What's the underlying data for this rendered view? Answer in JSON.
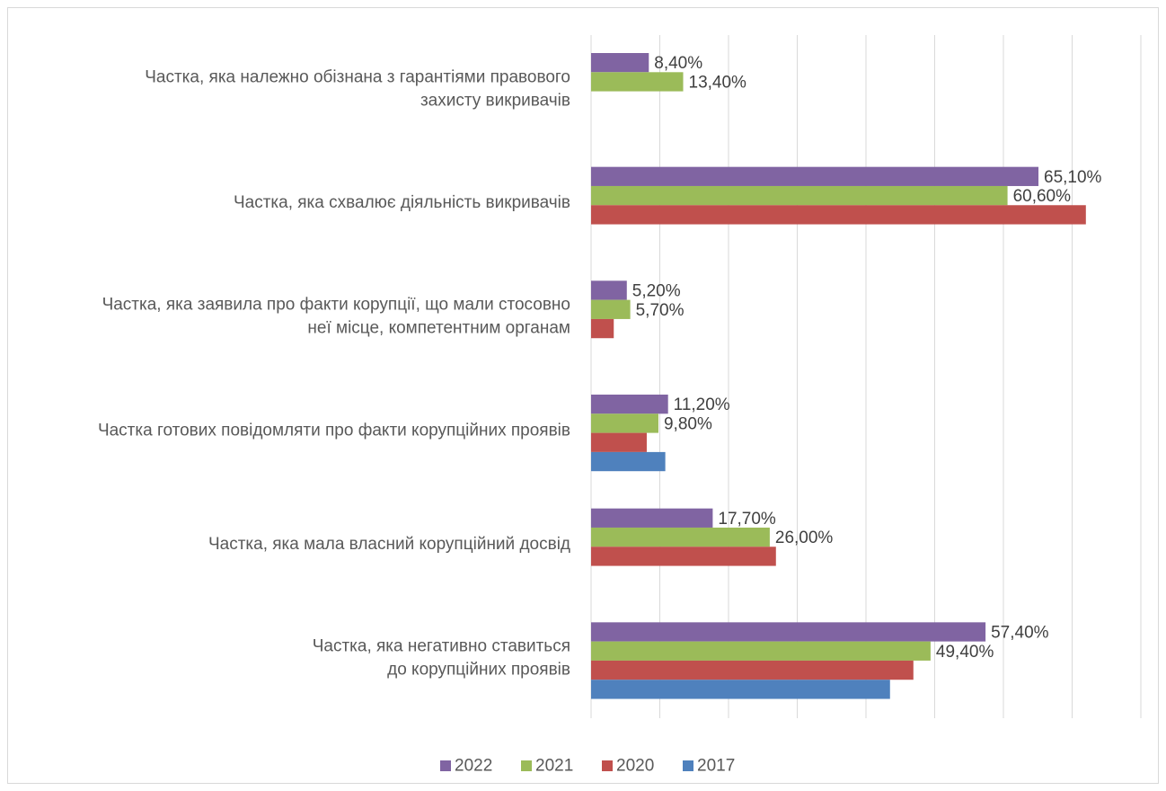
{
  "chart_data": {
    "type": "bar",
    "orientation": "horizontal",
    "categories": [
      [
        "Частка, яка належно обізнана з гарантіями правового",
        "захисту викривачів"
      ],
      [
        "Частка, яка схвалює діяльність викривачів"
      ],
      [
        "Частка, яка заявила про факти корупції, що мали стосовно",
        "неї місце, компетентним органам"
      ],
      [
        "Частка готових повідомляти про факти корупційних проявів"
      ],
      [
        "Частка, яка мала власний корупційний досвід"
      ],
      [
        "Частка, яка негативно ставиться",
        "до корупційних проявів"
      ]
    ],
    "series": [
      {
        "name": "2022",
        "color": "#8064a2",
        "values": [
          8.4,
          65.1,
          5.2,
          11.2,
          17.7,
          57.4
        ],
        "labels": [
          "8,40%",
          "65,10%",
          "5,20%",
          "11,20%",
          "17,70%",
          "57,40%"
        ]
      },
      {
        "name": "2021",
        "color": "#9bbb59",
        "values": [
          13.4,
          60.6,
          5.7,
          9.8,
          26.0,
          49.4
        ],
        "labels": [
          "13,40%",
          "60,60%",
          "5,70%",
          "9,80%",
          "26,00%",
          "49,40%"
        ]
      },
      {
        "name": "2020",
        "color": "#c0504d",
        "values": [
          null,
          72.0,
          3.3,
          8.1,
          26.9,
          46.9
        ],
        "labels": [
          null,
          null,
          null,
          null,
          null,
          null
        ]
      },
      {
        "name": "2017",
        "color": "#4f81bd",
        "values": [
          null,
          null,
          null,
          10.8,
          null,
          43.5
        ],
        "labels": [
          null,
          null,
          null,
          null,
          null,
          null
        ]
      }
    ],
    "legend_order": [
      "2022",
      "2021",
      "2020",
      "2017"
    ],
    "legend_position": "bottom",
    "xlim": [
      0,
      80
    ],
    "x_gridline_step": 10,
    "grid": true,
    "axis_tick_labels_shown": false
  }
}
